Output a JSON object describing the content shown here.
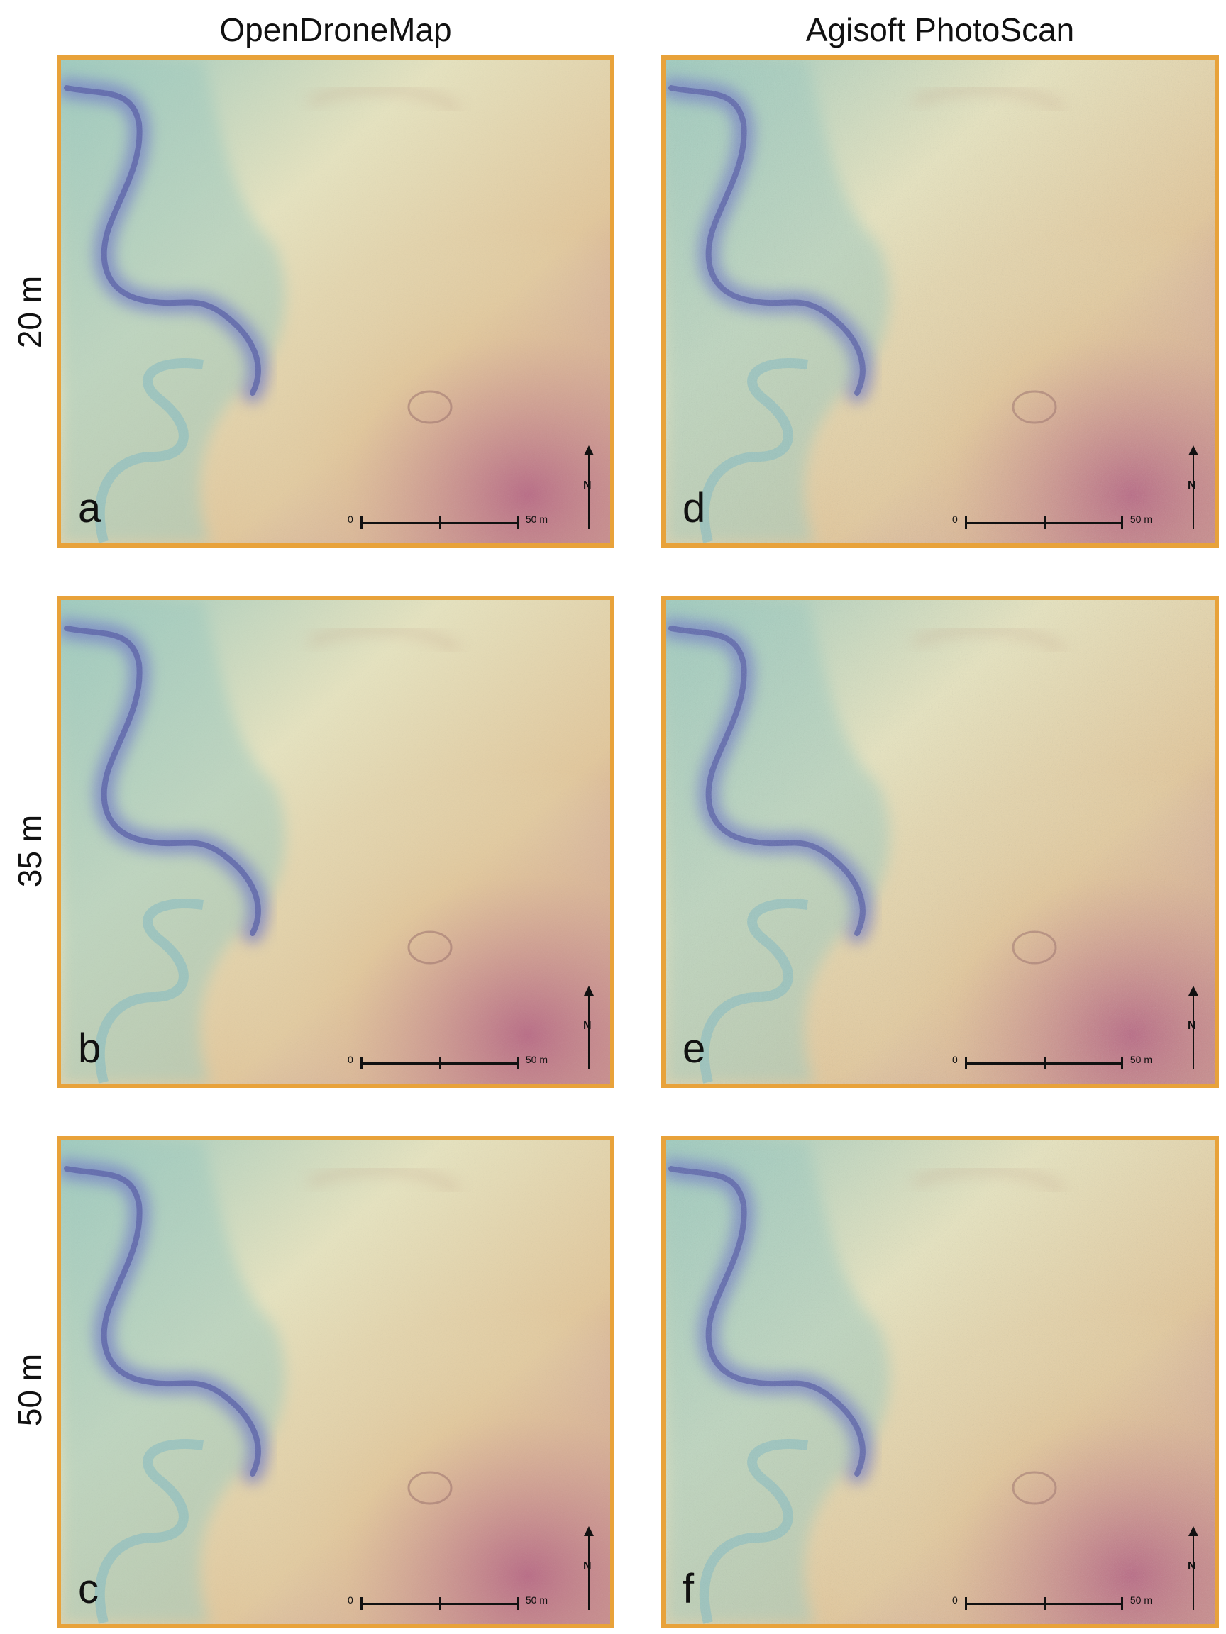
{
  "columns": [
    "OpenDroneMap",
    "Agisoft PhotoScan"
  ],
  "rows": [
    "20 m",
    "35 m",
    "50 m"
  ],
  "panels": [
    {
      "letter": "a",
      "source": "OpenDroneMap",
      "altitude": "20 m"
    },
    {
      "letter": "b",
      "source": "OpenDroneMap",
      "altitude": "35 m"
    },
    {
      "letter": "c",
      "source": "OpenDroneMap",
      "altitude": "50 m"
    },
    {
      "letter": "d",
      "source": "Agisoft PhotoScan",
      "altitude": "20 m"
    },
    {
      "letter": "e",
      "source": "Agisoft PhotoScan",
      "altitude": "35 m"
    },
    {
      "letter": "f",
      "source": "Agisoft PhotoScan",
      "altitude": "50 m"
    }
  ],
  "scalebar": {
    "start": "0",
    "end": "50 m"
  },
  "north_label": "N",
  "colors": {
    "frame": "#e8a23a",
    "low": "#6f79c9",
    "mid_low": "#9fcbbf",
    "mid": "#e6e3bf",
    "mid_high": "#e2c79b",
    "high": "#b86a85"
  }
}
